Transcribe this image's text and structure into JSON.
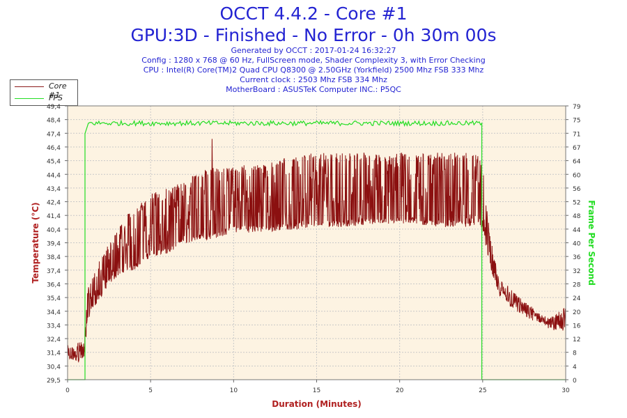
{
  "header": {
    "title": "OCCT 4.4.2 - Core #1",
    "subtitle": "GPU:3D - Finished - No Error - 0h 30m 00s",
    "lines": [
      "Generated by OCCT : 2017-01-24 16:32:27",
      "Config : 1280 x 768 @ 60 Hz, FullScreen mode, Shader Complexity 3, with Error Checking",
      "CPU : Intel(R) Core(TM)2 Quad CPU Q8300 @ 2.50GHz (Yorkfield) 2500 Mhz FSB 333 Mhz",
      "Current clock : 2503 Mhz FSB 334 Mhz",
      "MotherBoard : ASUSTeK Computer INC.: P5QC"
    ]
  },
  "colors": {
    "temperature": "#8b1010",
    "fps": "#22dd22",
    "plot_bg": "#fdf3e2",
    "grid": "#c8c8c8",
    "text_blue": "#2323d2",
    "axis_label": "#b02020"
  },
  "chart_data": {
    "type": "line",
    "xlabel": "Duration (Minutes)",
    "ylabel": "Temperature (°C)",
    "y2label": "Frame Per Second",
    "xlim": [
      0,
      30
    ],
    "ylim": [
      29.5,
      49.4
    ],
    "y2lim": [
      0,
      79
    ],
    "x_ticks": [
      "0",
      "5",
      "10",
      "15",
      "20",
      "25",
      "30"
    ],
    "y_ticks": [
      "29,5",
      "30,4",
      "31,4",
      "32,4",
      "33,4",
      "34,4",
      "35,4",
      "36,4",
      "37,4",
      "38,4",
      "39,4",
      "40,4",
      "41,4",
      "42,4",
      "43,4",
      "44,4",
      "45,4",
      "46,4",
      "47,4",
      "48,4",
      "49,4"
    ],
    "y2_ticks": [
      "0",
      "4",
      "8",
      "12",
      "16",
      "20",
      "24",
      "28",
      "32",
      "36",
      "40",
      "44",
      "48",
      "52",
      "56",
      "60",
      "64",
      "67",
      "71",
      "75",
      "79"
    ],
    "grid": true,
    "legend": "top-left",
    "series": [
      {
        "name": "Core #1",
        "axis": "left",
        "x": [
          0,
          0.5,
          0.9,
          1.0,
          1.2,
          1.6,
          2.0,
          2.5,
          3.0,
          3.5,
          4.0,
          4.5,
          5.0,
          6.0,
          7.0,
          8.0,
          9.0,
          10.0,
          11.0,
          12.0,
          13.0,
          14.0,
          15.0,
          16.0,
          17.0,
          18.0,
          19.0,
          20.0,
          21.0,
          22.0,
          23.0,
          24.0,
          24.8,
          25.0,
          25.3,
          25.7,
          26.0,
          26.5,
          27.0,
          27.5,
          28.0,
          28.5,
          29.0,
          29.5,
          30.0
        ],
        "low": [
          30.8,
          30.8,
          30.8,
          30.8,
          33.8,
          34.8,
          35.4,
          36.4,
          37.0,
          37.4,
          37.4,
          38.0,
          38.4,
          38.6,
          39.4,
          39.6,
          39.8,
          40.2,
          40.2,
          40.2,
          40.4,
          40.4,
          40.6,
          40.6,
          40.6,
          40.8,
          40.8,
          40.8,
          40.8,
          40.6,
          40.6,
          40.6,
          40.8,
          40.4,
          38.4,
          36.4,
          35.6,
          35.0,
          34.4,
          34.0,
          33.8,
          33.6,
          33.2,
          33.0,
          33.0
        ],
        "high": [
          32.0,
          32.0,
          32.6,
          32.8,
          36.0,
          37.4,
          38.4,
          39.4,
          40.6,
          41.4,
          42.0,
          42.4,
          43.0,
          43.4,
          44.0,
          44.6,
          45.0,
          45.0,
          45.2,
          45.2,
          45.6,
          45.8,
          46.0,
          46.0,
          46.0,
          46.0,
          45.8,
          46.0,
          46.0,
          46.0,
          46.0,
          46.0,
          46.0,
          45.0,
          41.4,
          38.4,
          37.0,
          36.4,
          35.8,
          35.2,
          34.8,
          34.4,
          34.0,
          34.4,
          34.8
        ],
        "spike": {
          "x": 8.7,
          "y": 47.0
        }
      },
      {
        "name": "FPS",
        "axis": "right",
        "x": [
          0,
          1.05,
          1.05,
          1.25,
          24.95,
          24.95,
          30
        ],
        "y": [
          0,
          0,
          71,
          74,
          74,
          0,
          0
        ]
      }
    ]
  }
}
